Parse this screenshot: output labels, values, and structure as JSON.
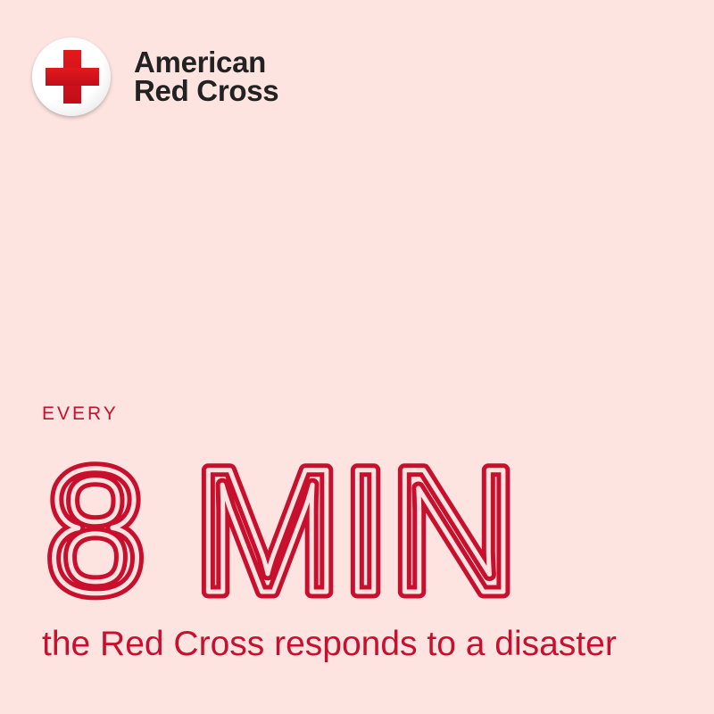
{
  "brand": {
    "name_line1": "American",
    "name_line2": "Red Cross",
    "color": "#c8102e"
  },
  "headline": {
    "prefix": "EVERY",
    "stat": "8 MIN",
    "caption": "the Red Cross responds to a disaster"
  },
  "colors": {
    "background": "#fde4e1",
    "accent": "#c8102e"
  }
}
